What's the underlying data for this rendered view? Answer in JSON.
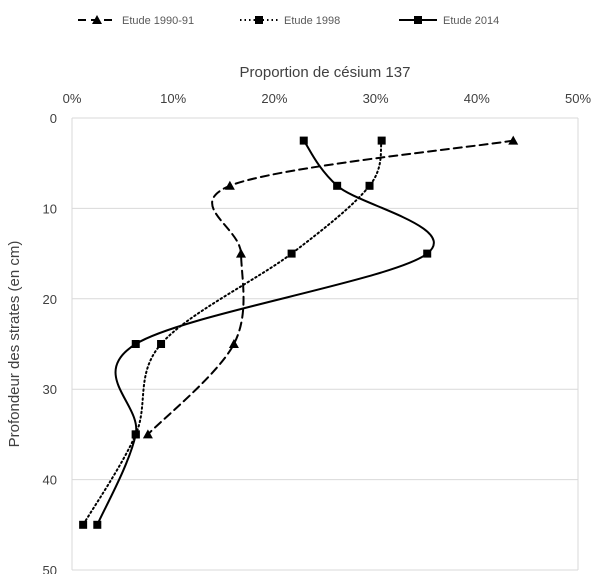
{
  "chart_data": {
    "type": "line",
    "orientation": "depth-profile",
    "x_axis_position": "top",
    "xlabel": "Proportion de césium 137",
    "ylabel": "Profondeur des strates (en cm)",
    "xlim": [
      0,
      0.5
    ],
    "ylim": [
      0,
      50
    ],
    "y_inverted": true,
    "x_ticks": [
      0,
      0.1,
      0.2,
      0.3,
      0.4,
      0.5
    ],
    "x_tick_labels": [
      "0%",
      "10%",
      "20%",
      "30%",
      "40%",
      "50%"
    ],
    "y_ticks": [
      0,
      10,
      20,
      30,
      40,
      50
    ],
    "y_tick_labels": [
      "0",
      "10",
      "20",
      "30",
      "40",
      "50"
    ],
    "grid": true,
    "legend_position": "top",
    "series": [
      {
        "name": "Etude 1990-91",
        "line_style": "dashed",
        "marker": "triangle",
        "color": "#000000",
        "points": [
          {
            "x": 0.436,
            "y": 2.5
          },
          {
            "x": 0.156,
            "y": 7.5
          },
          {
            "x": 0.167,
            "y": 15
          },
          {
            "x": 0.16,
            "y": 25
          },
          {
            "x": 0.075,
            "y": 35
          }
        ]
      },
      {
        "name": "Etude 1998",
        "line_style": "dotted",
        "marker": "square",
        "color": "#000000",
        "points": [
          {
            "x": 0.306,
            "y": 2.5
          },
          {
            "x": 0.294,
            "y": 7.5
          },
          {
            "x": 0.217,
            "y": 15
          },
          {
            "x": 0.088,
            "y": 25
          },
          {
            "x": 0.063,
            "y": 35
          },
          {
            "x": 0.011,
            "y": 45
          }
        ]
      },
      {
        "name": "Etude 2014",
        "line_style": "solid",
        "marker": "square",
        "color": "#000000",
        "points": [
          {
            "x": 0.229,
            "y": 2.5
          },
          {
            "x": 0.262,
            "y": 7.5
          },
          {
            "x": 0.351,
            "y": 15
          },
          {
            "x": 0.063,
            "y": 25
          },
          {
            "x": 0.063,
            "y": 35
          },
          {
            "x": 0.025,
            "y": 45
          }
        ]
      }
    ]
  }
}
